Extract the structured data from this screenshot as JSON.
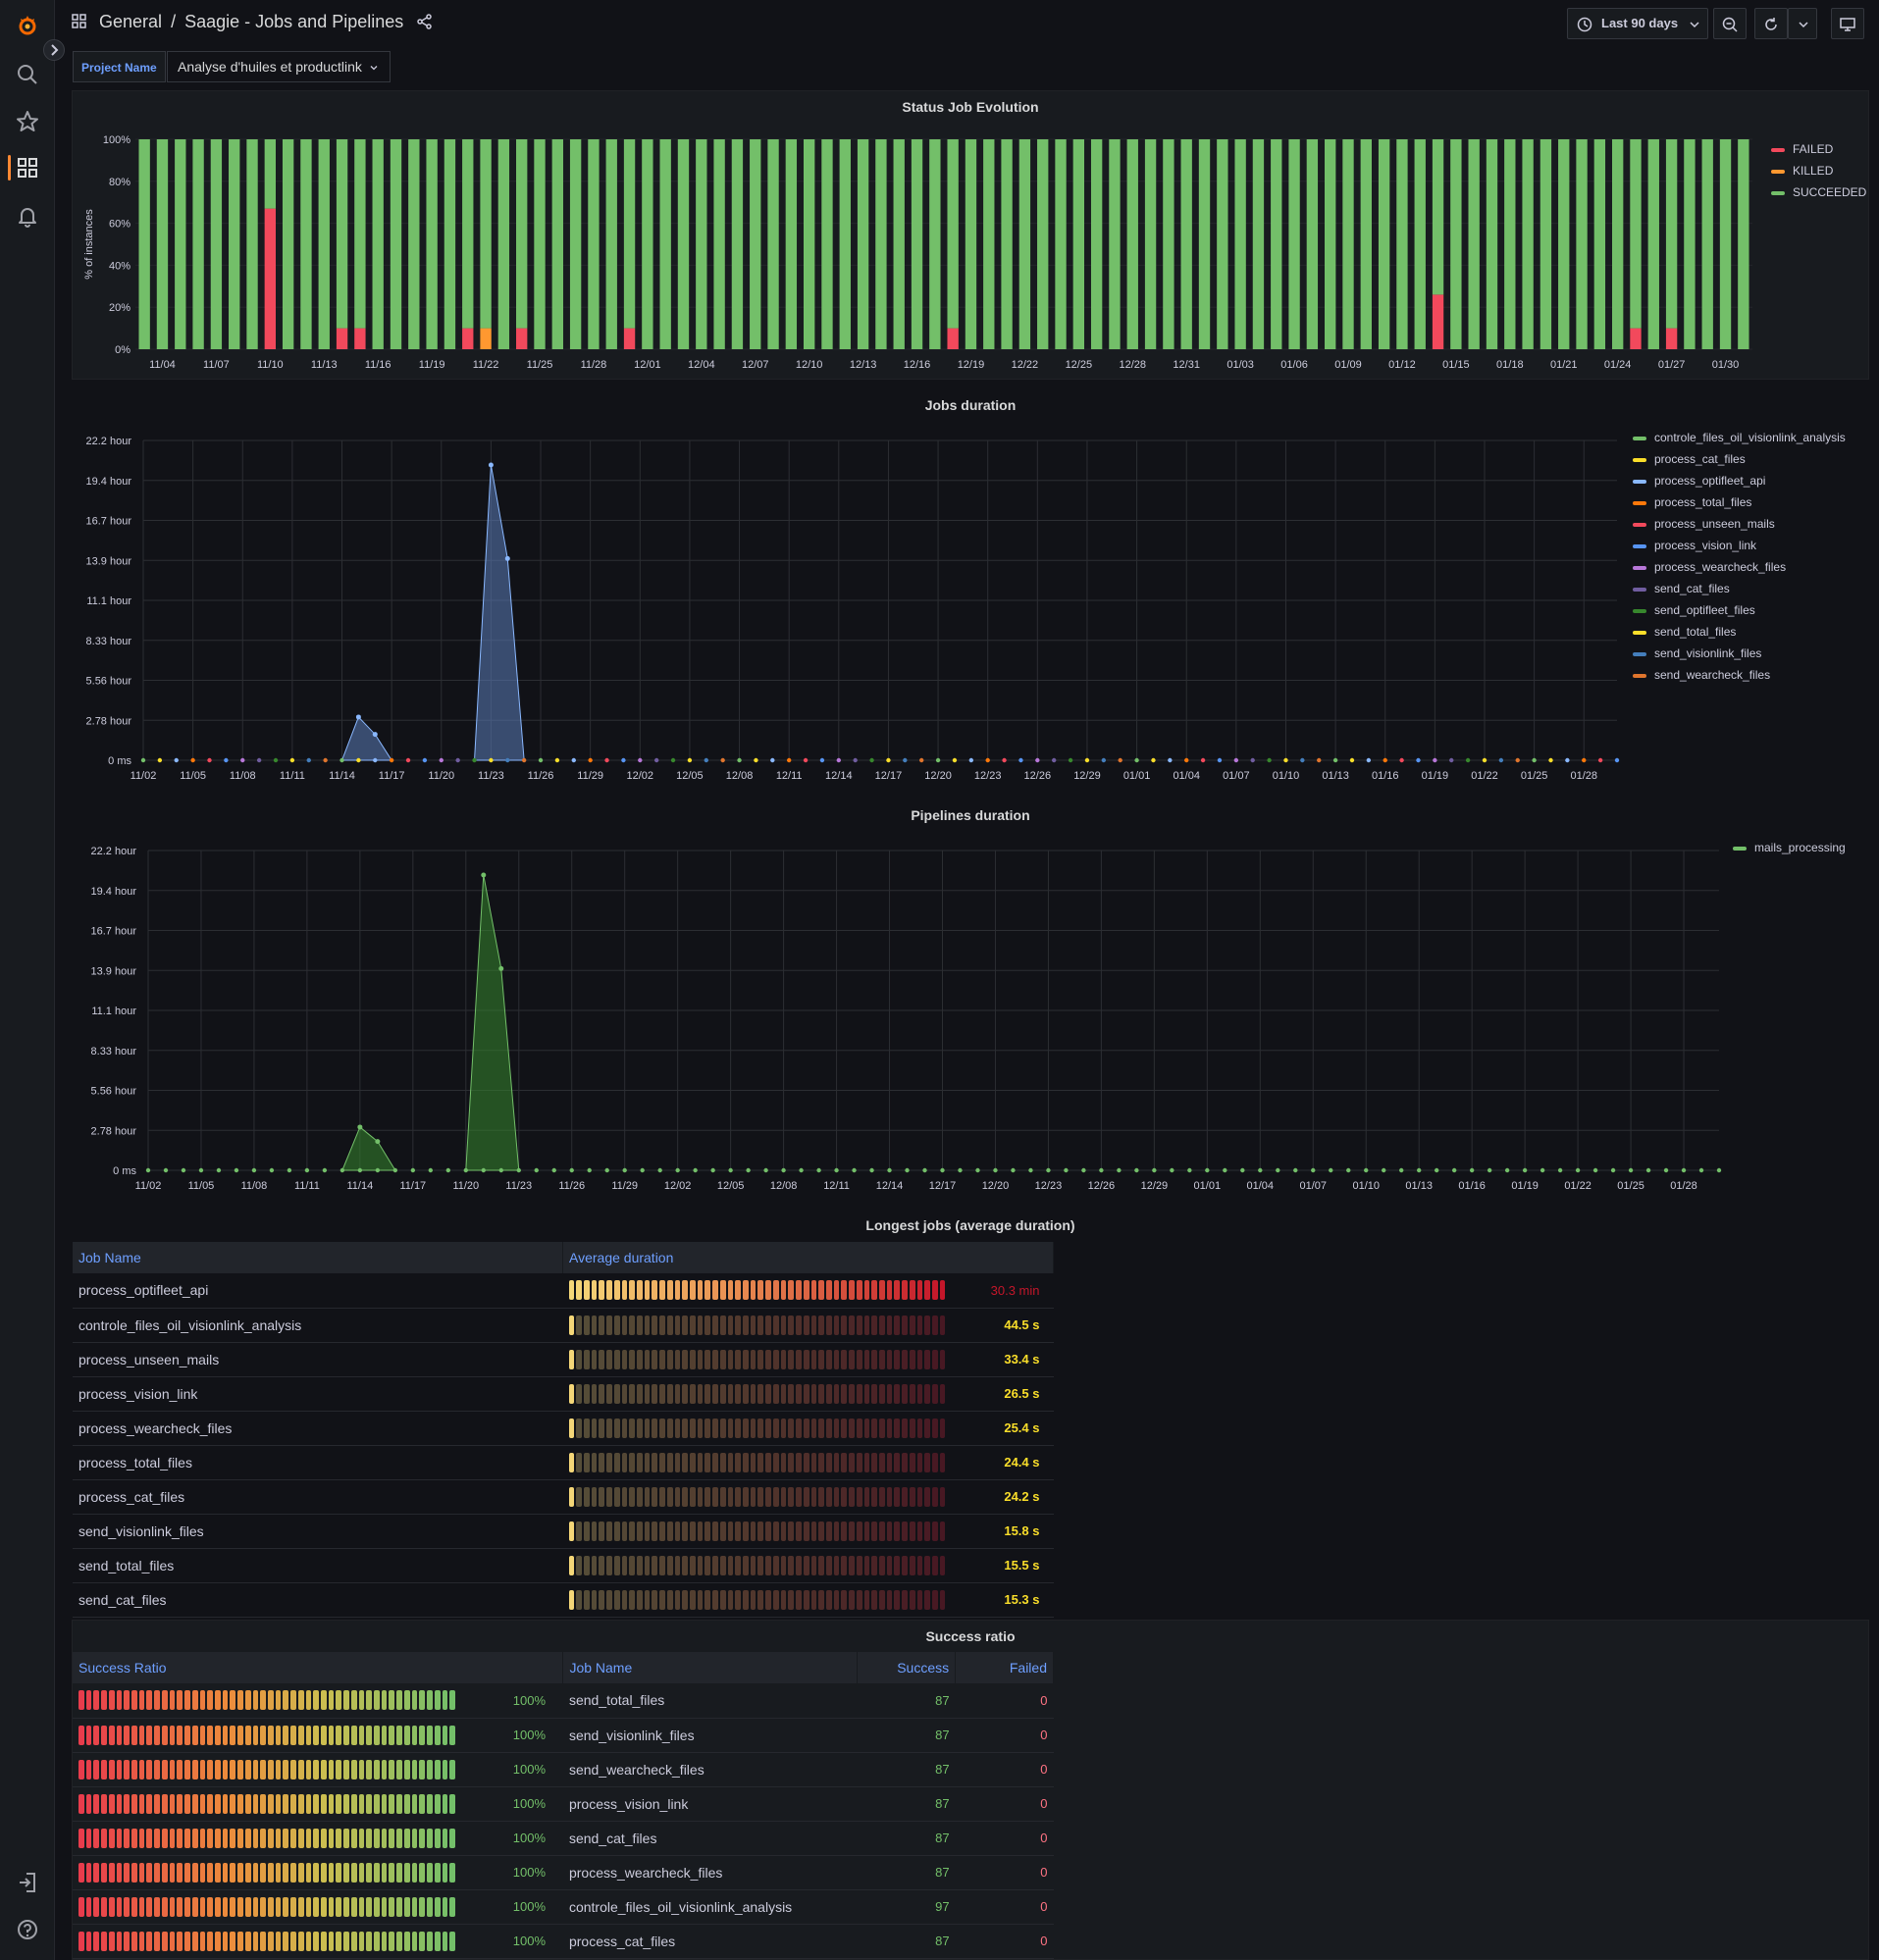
{
  "header": {
    "folder": "General",
    "separator": "/",
    "dashboard_title": "Saagie - Jobs and Pipelines",
    "time_range": "Last 90 days"
  },
  "variables": {
    "label": "Project Name",
    "value": "Analyse d'huiles et productlink"
  },
  "status_panel": {
    "title": "Status Job Evolution",
    "ylabel": "% of instances",
    "yticks": [
      "100%",
      "80%",
      "60%",
      "40%",
      "20%",
      "0%"
    ],
    "xticks": [
      "11/04",
      "11/07",
      "11/10",
      "11/13",
      "11/16",
      "11/19",
      "11/22",
      "11/25",
      "11/28",
      "12/01",
      "12/04",
      "12/07",
      "12/10",
      "12/13",
      "12/16",
      "12/19",
      "12/22",
      "12/25",
      "12/28",
      "12/31",
      "01/03",
      "01/06",
      "01/09",
      "01/12",
      "01/15",
      "01/18",
      "01/21",
      "01/24",
      "01/27",
      "01/30"
    ],
    "legend": [
      {
        "name": "FAILED",
        "color": "#f2495c"
      },
      {
        "name": "KILLED",
        "color": "#ff9830"
      },
      {
        "name": "SUCCEEDED",
        "color": "#73bf69"
      }
    ]
  },
  "jobs_panel": {
    "title": "Jobs duration",
    "yticks": [
      "22.2 hour",
      "19.4 hour",
      "16.7 hour",
      "13.9 hour",
      "11.1 hour",
      "8.33 hour",
      "5.56 hour",
      "2.78 hour",
      "0 ms"
    ],
    "xticks": [
      "11/02",
      "11/05",
      "11/08",
      "11/11",
      "11/14",
      "11/17",
      "11/20",
      "11/23",
      "11/26",
      "11/29",
      "12/02",
      "12/05",
      "12/08",
      "12/11",
      "12/14",
      "12/17",
      "12/20",
      "12/23",
      "12/26",
      "12/29",
      "01/01",
      "01/04",
      "01/07",
      "01/10",
      "01/13",
      "01/16",
      "01/19",
      "01/22",
      "01/25",
      "01/28"
    ],
    "legend": [
      {
        "name": "controle_files_oil_visionlink_analysis",
        "color": "#73bf69"
      },
      {
        "name": "process_cat_files",
        "color": "#fade2a"
      },
      {
        "name": "process_optifleet_api",
        "color": "#8ab8ff"
      },
      {
        "name": "process_total_files",
        "color": "#ff780a"
      },
      {
        "name": "process_unseen_mails",
        "color": "#f2495c"
      },
      {
        "name": "process_vision_link",
        "color": "#5794f2"
      },
      {
        "name": "process_wearcheck_files",
        "color": "#b877d9"
      },
      {
        "name": "send_cat_files",
        "color": "#705da0"
      },
      {
        "name": "send_optifleet_files",
        "color": "#37872d"
      },
      {
        "name": "send_total_files",
        "color": "#fade2a"
      },
      {
        "name": "send_visionlink_files",
        "color": "#447ebc"
      },
      {
        "name": "send_wearcheck_files",
        "color": "#e0752d"
      }
    ]
  },
  "pipelines_panel": {
    "title": "Pipelines duration",
    "yticks": [
      "22.2 hour",
      "19.4 hour",
      "16.7 hour",
      "13.9 hour",
      "11.1 hour",
      "8.33 hour",
      "5.56 hour",
      "2.78 hour",
      "0 ms"
    ],
    "xticks": [
      "11/02",
      "11/05",
      "11/08",
      "11/11",
      "11/14",
      "11/17",
      "11/20",
      "11/23",
      "11/26",
      "11/29",
      "12/02",
      "12/05",
      "12/08",
      "12/11",
      "12/14",
      "12/17",
      "12/20",
      "12/23",
      "12/26",
      "12/29",
      "01/01",
      "01/04",
      "01/07",
      "01/10",
      "01/13",
      "01/16",
      "01/19",
      "01/22",
      "01/25",
      "01/28"
    ],
    "legend": [
      {
        "name": "mails_processing",
        "color": "#73bf69"
      }
    ]
  },
  "longest_jobs": {
    "title": "Longest jobs (average duration)",
    "col_job": "Job Name",
    "col_duration": "Average duration",
    "rows": [
      {
        "name": "process_optifleet_api",
        "value": "30.3 min",
        "fraction": 1.0
      },
      {
        "name": "controle_files_oil_visionlink_analysis",
        "value": "44.5 s",
        "fraction": 0.024
      },
      {
        "name": "process_unseen_mails",
        "value": "33.4 s",
        "fraction": 0.018
      },
      {
        "name": "process_vision_link",
        "value": "26.5 s",
        "fraction": 0.015
      },
      {
        "name": "process_wearcheck_files",
        "value": "25.4 s",
        "fraction": 0.014
      },
      {
        "name": "process_total_files",
        "value": "24.4 s",
        "fraction": 0.013
      },
      {
        "name": "process_cat_files",
        "value": "24.2 s",
        "fraction": 0.013
      },
      {
        "name": "send_visionlink_files",
        "value": "15.8 s",
        "fraction": 0.009
      },
      {
        "name": "send_total_files",
        "value": "15.5 s",
        "fraction": 0.009
      },
      {
        "name": "send_cat_files",
        "value": "15.3 s",
        "fraction": 0.008
      }
    ]
  },
  "success_ratio": {
    "title": "Success ratio",
    "col_ratio": "Success Ratio",
    "col_job": "Job Name",
    "col_success": "Success",
    "col_failed": "Failed",
    "rows": [
      {
        "ratio": "100%",
        "name": "send_total_files",
        "success": "87",
        "failed": "0"
      },
      {
        "ratio": "100%",
        "name": "send_visionlink_files",
        "success": "87",
        "failed": "0"
      },
      {
        "ratio": "100%",
        "name": "send_wearcheck_files",
        "success": "87",
        "failed": "0"
      },
      {
        "ratio": "100%",
        "name": "process_vision_link",
        "success": "87",
        "failed": "0"
      },
      {
        "ratio": "100%",
        "name": "send_cat_files",
        "success": "87",
        "failed": "0"
      },
      {
        "ratio": "100%",
        "name": "process_wearcheck_files",
        "success": "87",
        "failed": "0"
      },
      {
        "ratio": "100%",
        "name": "controle_files_oil_visionlink_analysis",
        "success": "97",
        "failed": "0"
      },
      {
        "ratio": "100%",
        "name": "process_cat_files",
        "success": "87",
        "failed": "0"
      }
    ]
  },
  "chart_data": [
    {
      "type": "bar",
      "title": "Status Job Evolution",
      "ylabel": "% of instances",
      "ylim": [
        0,
        100
      ],
      "stacked": true,
      "bar_count": 90,
      "legend_placement": "right",
      "series": [
        {
          "name": "FAILED",
          "bar_values": {
            "7": 67,
            "11": 10,
            "12": 10,
            "18": 10,
            "21": 10,
            "27": 10,
            "45": 10,
            "72": 26,
            "83": 10,
            "85": 10
          }
        },
        {
          "name": "KILLED",
          "bar_values": {
            "19": 10
          }
        },
        {
          "name": "SUCCEEDED",
          "fill": "remainder to 100%"
        }
      ]
    },
    {
      "type": "area",
      "title": "Jobs duration",
      "unit": "hour",
      "ylim": [
        0,
        22.2
      ],
      "point_count": 90,
      "legend_placement": "right",
      "series": [
        {
          "name": "send_cat_files",
          "peaks": [
            {
              "index": 12,
              "value": 0
            },
            {
              "index": 13,
              "value": 3.0
            },
            {
              "index": 14,
              "value": 1.8
            },
            {
              "index": 15,
              "value": 0
            },
            {
              "index": 20,
              "value": 0
            },
            {
              "index": 21,
              "value": 20.5
            },
            {
              "index": 22,
              "value": 14.0
            },
            {
              "index": 23,
              "value": 0
            }
          ]
        }
      ]
    },
    {
      "type": "area",
      "title": "Pipelines duration",
      "unit": "hour",
      "ylim": [
        0,
        22.2
      ],
      "point_count": 90,
      "legend_placement": "right",
      "series": [
        {
          "name": "mails_processing",
          "peaks": [
            {
              "index": 11,
              "value": 0
            },
            {
              "index": 12,
              "value": 3.0
            },
            {
              "index": 13,
              "value": 2.0
            },
            {
              "index": 14,
              "value": 0
            },
            {
              "index": 18,
              "value": 0
            },
            {
              "index": 19,
              "value": 20.5
            },
            {
              "index": 20,
              "value": 14.0
            },
            {
              "index": 21,
              "value": 0
            }
          ]
        }
      ]
    }
  ]
}
